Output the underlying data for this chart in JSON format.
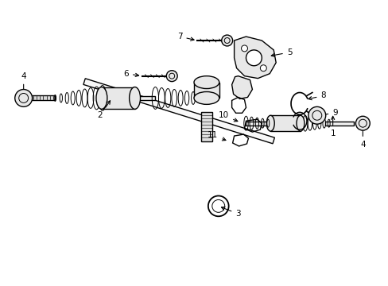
{
  "background_color": "#ffffff",
  "fig_width": 4.89,
  "fig_height": 3.6,
  "dpi": 100,
  "line_color": "#000000",
  "shaft_color": "#f0f0f0",
  "part_gray": "#e0e0e0",
  "dark_gray": "#888888"
}
